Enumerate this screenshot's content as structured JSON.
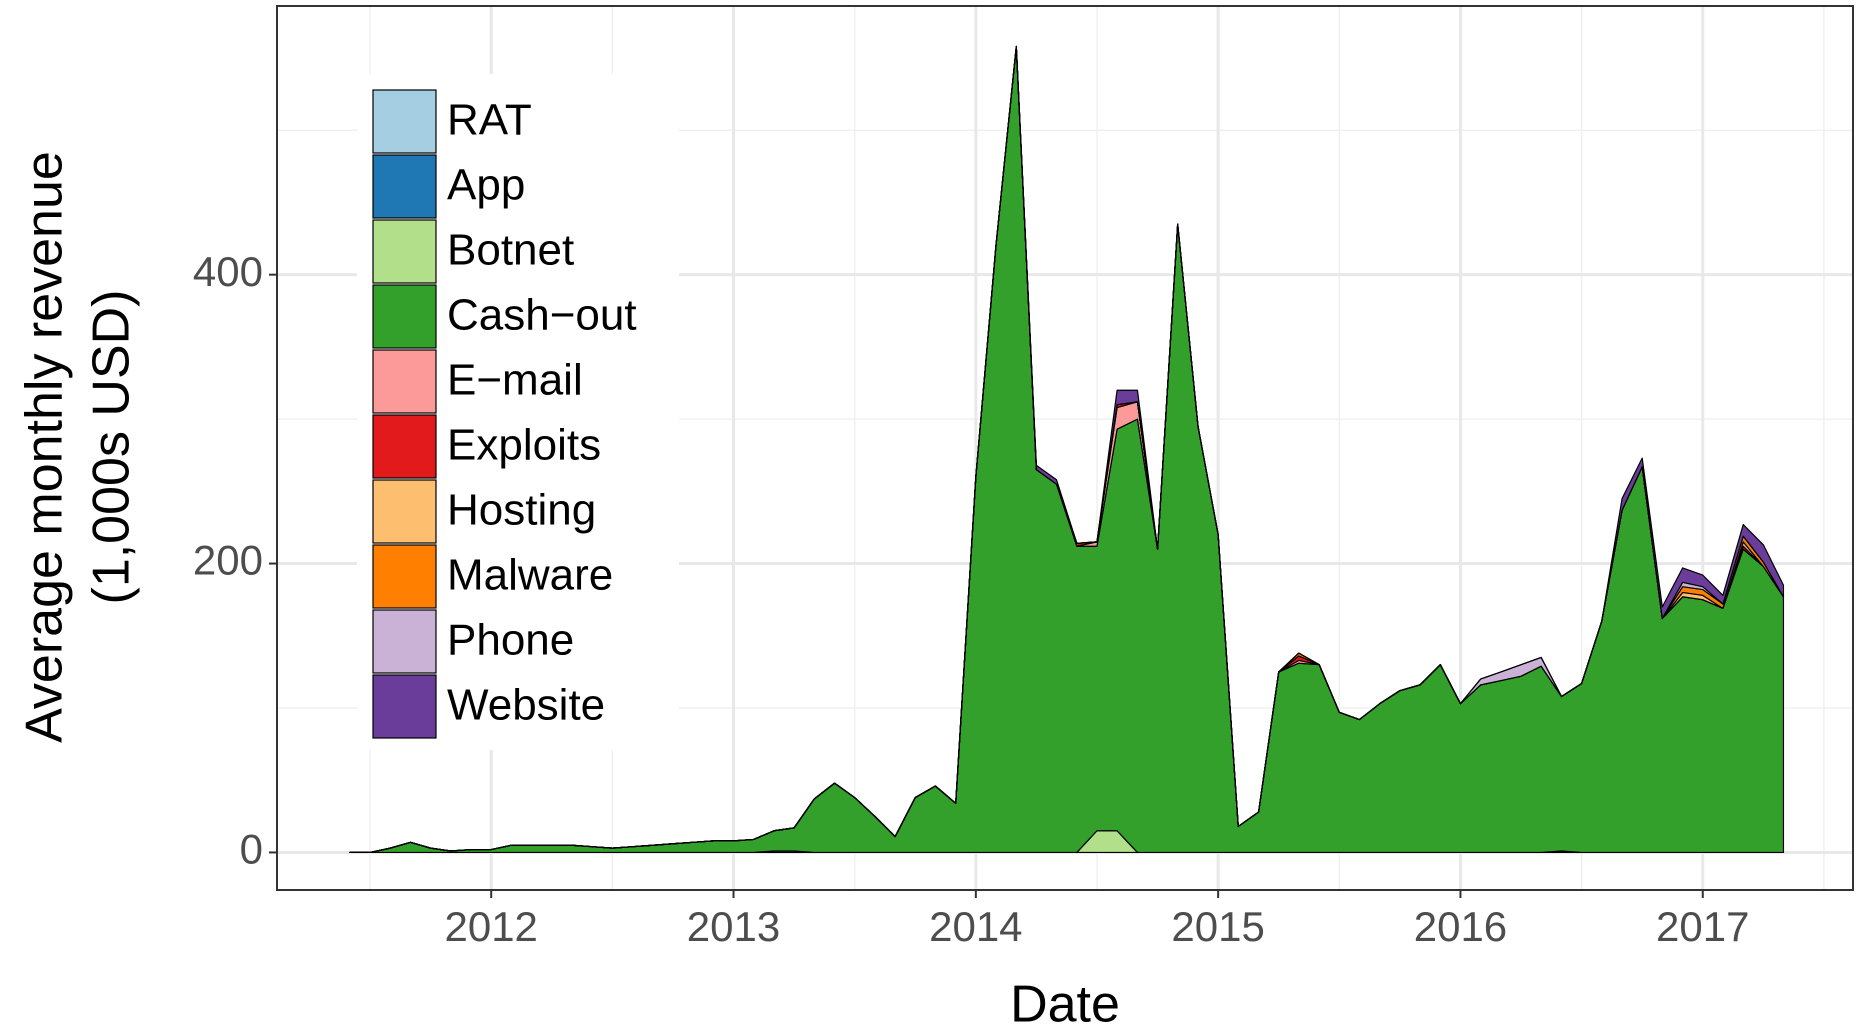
{
  "chart_data": {
    "type": "stacked_area",
    "x_label": "Date",
    "y_label": [
      "Average monthly revenue",
      "(1,000s USD)"
    ],
    "legend_position": "top-left",
    "grid": true,
    "xlim": [
      2011.116,
      2017.62
    ],
    "xticks": [
      2012,
      2013,
      2014,
      2015,
      2016,
      2017
    ],
    "ylim": [
      -26,
      586
    ],
    "yticks": [
      0,
      200,
      400
    ],
    "x": [
      2011.417,
      2011.5,
      2011.583,
      2011.667,
      2011.75,
      2011.833,
      2011.917,
      2012,
      2012.083,
      2012.167,
      2012.25,
      2012.333,
      2012.417,
      2012.5,
      2012.583,
      2012.667,
      2012.75,
      2012.833,
      2012.917,
      2013,
      2013.083,
      2013.167,
      2013.25,
      2013.333,
      2013.417,
      2013.5,
      2013.583,
      2013.667,
      2013.75,
      2013.833,
      2013.917,
      2014,
      2014.083,
      2014.167,
      2014.25,
      2014.333,
      2014.417,
      2014.5,
      2014.583,
      2014.667,
      2014.75,
      2014.833,
      2014.917,
      2015,
      2015.083,
      2015.167,
      2015.25,
      2015.333,
      2015.417,
      2015.5,
      2015.583,
      2015.667,
      2015.75,
      2015.833,
      2015.917,
      2016,
      2016.083,
      2016.167,
      2016.25,
      2016.333,
      2016.417,
      2016.5,
      2016.583,
      2016.667,
      2016.75,
      2016.833,
      2016.917,
      2017,
      2017.083,
      2017.167,
      2017.25,
      2017.333
    ],
    "series": [
      {
        "name": "RAT",
        "color": "#a6cee3",
        "values": [
          0,
          0,
          0,
          0,
          0,
          0,
          0,
          0,
          0,
          0,
          0,
          0,
          0,
          0,
          0,
          0,
          0,
          0,
          0,
          0,
          0,
          1,
          1,
          0,
          0,
          0,
          0,
          0,
          0,
          0,
          0,
          0,
          0,
          0,
          0,
          0,
          0,
          0,
          0,
          0,
          0,
          0,
          0,
          0,
          0,
          0,
          0,
          0,
          0,
          0,
          0,
          0,
          0,
          0,
          0,
          0,
          0,
          0,
          0,
          0,
          0,
          0,
          0,
          0,
          0,
          0,
          0,
          0,
          0,
          0,
          0,
          0
        ]
      },
      {
        "name": "App",
        "color": "#1f78b4",
        "values": [
          0,
          0,
          0,
          0,
          0,
          0,
          0,
          0,
          0,
          0,
          0,
          0,
          0,
          0,
          0,
          0,
          0,
          0,
          0,
          0,
          0,
          0,
          0,
          0,
          0,
          0,
          0,
          0,
          0,
          0,
          0,
          0,
          0,
          0,
          0,
          0,
          0,
          0,
          0,
          0,
          0,
          0,
          0,
          0,
          0,
          0,
          0,
          0,
          0,
          0,
          0,
          0,
          0,
          0,
          0,
          0,
          0,
          0,
          0,
          0,
          1,
          0,
          0,
          0,
          0,
          0,
          0,
          0,
          0,
          0,
          0,
          0
        ]
      },
      {
        "name": "Botnet",
        "color": "#b2df8a",
        "values": [
          0,
          0,
          0,
          0,
          0,
          0,
          0,
          0,
          0,
          0,
          0,
          0,
          0,
          0,
          0,
          0,
          0,
          0,
          0,
          0,
          0,
          0,
          0,
          0,
          0,
          0,
          0,
          0,
          0,
          0,
          0,
          0,
          0,
          0,
          0,
          0,
          0,
          15,
          15,
          0,
          0,
          0,
          0,
          0,
          0,
          0,
          0,
          0,
          0,
          0,
          0,
          0,
          0,
          0,
          0,
          0,
          0,
          0,
          0,
          0,
          0,
          0,
          0,
          0,
          0,
          0,
          0,
          0,
          0,
          0,
          0,
          0
        ]
      },
      {
        "name": "Cash−out",
        "color": "#33a02c",
        "values": [
          0,
          0,
          3,
          7,
          3,
          1,
          2,
          2,
          5,
          5,
          5,
          5,
          4,
          3,
          4,
          5,
          6,
          7,
          8,
          8,
          9,
          14,
          16,
          37,
          48,
          38,
          25,
          11,
          38,
          46,
          34,
          260,
          420,
          558,
          265,
          255,
          212,
          197,
          278,
          300,
          210,
          435,
          295,
          220,
          18,
          28,
          125,
          131,
          130,
          97,
          92,
          103,
          112,
          116,
          130,
          103,
          116,
          119,
          122,
          129,
          107,
          117,
          160,
          237,
          267,
          162,
          177,
          175,
          169,
          210,
          198,
          177
        ]
      },
      {
        "name": "E−mail",
        "color": "#fb9a99",
        "values": [
          0,
          0,
          0,
          0,
          0,
          0,
          0,
          0,
          0,
          0,
          0,
          0,
          0,
          0,
          0,
          0,
          0,
          0,
          0,
          0,
          0,
          0,
          0,
          0,
          0,
          0,
          0,
          0,
          0,
          0,
          0,
          0,
          0,
          0,
          0,
          0,
          0,
          3,
          15,
          12,
          0,
          0,
          0,
          0,
          0,
          0,
          0,
          2,
          0,
          0,
          0,
          0,
          0,
          0,
          0,
          0,
          0,
          0,
          0,
          0,
          0,
          0,
          0,
          0,
          0,
          0,
          0,
          0,
          0,
          0,
          0,
          0
        ]
      },
      {
        "name": "Exploits",
        "color": "#e31a1c",
        "values": [
          0,
          0,
          0,
          0,
          0,
          0,
          0,
          0,
          0,
          0,
          0,
          0,
          0,
          0,
          0,
          0,
          0,
          0,
          0,
          0,
          0,
          0,
          0,
          0,
          0,
          0,
          0,
          0,
          0,
          0,
          0,
          0,
          0,
          0,
          0,
          0,
          2,
          0,
          2,
          0,
          0,
          0,
          0,
          0,
          0,
          0,
          0,
          3,
          0,
          0,
          0,
          0,
          0,
          0,
          0,
          0,
          0,
          0,
          0,
          0,
          0,
          0,
          0,
          0,
          0,
          0,
          0,
          0,
          0,
          2,
          0,
          0
        ]
      },
      {
        "name": "Hosting",
        "color": "#fdbf6f",
        "values": [
          0,
          0,
          0,
          0,
          0,
          0,
          0,
          0,
          0,
          0,
          0,
          0,
          0,
          0,
          0,
          0,
          0,
          0,
          0,
          0,
          0,
          0,
          0,
          0,
          0,
          0,
          0,
          0,
          0,
          0,
          0,
          0,
          0,
          0,
          0,
          0,
          0,
          0,
          0,
          0,
          0,
          0,
          0,
          0,
          0,
          0,
          0,
          0,
          0,
          0,
          0,
          0,
          0,
          0,
          0,
          0,
          0,
          0,
          0,
          0,
          0,
          0,
          0,
          0,
          0,
          0,
          3,
          3,
          0,
          3,
          0,
          0
        ]
      },
      {
        "name": "Malware",
        "color": "#ff7f00",
        "values": [
          0,
          0,
          0,
          0,
          0,
          0,
          0,
          0,
          0,
          0,
          0,
          0,
          0,
          0,
          0,
          0,
          0,
          0,
          0,
          0,
          0,
          0,
          0,
          0,
          0,
          0,
          0,
          0,
          0,
          0,
          0,
          0,
          0,
          0,
          0,
          0,
          0,
          0,
          0,
          0,
          0,
          0,
          0,
          0,
          0,
          0,
          0,
          2,
          0,
          0,
          0,
          0,
          0,
          0,
          0,
          0,
          0,
          0,
          0,
          0,
          0,
          0,
          0,
          0,
          0,
          0,
          4,
          4,
          3,
          4,
          3,
          0
        ]
      },
      {
        "name": "Phone",
        "color": "#cab2d6",
        "values": [
          0,
          0,
          0,
          0,
          0,
          0,
          0,
          0,
          0,
          0,
          0,
          0,
          0,
          0,
          0,
          0,
          0,
          0,
          0,
          0,
          0,
          0,
          0,
          0,
          0,
          0,
          0,
          0,
          0,
          0,
          0,
          0,
          0,
          0,
          0,
          0,
          0,
          0,
          0,
          0,
          0,
          0,
          0,
          0,
          0,
          0,
          0,
          0,
          0,
          0,
          0,
          0,
          0,
          0,
          0,
          0,
          4,
          6,
          8,
          6,
          0,
          0,
          0,
          0,
          0,
          0,
          3,
          2,
          0,
          0,
          0,
          0
        ]
      },
      {
        "name": "Website",
        "color": "#6a3d9a",
        "values": [
          0,
          0,
          0,
          0,
          0,
          0,
          0,
          0,
          0,
          0,
          0,
          0,
          0,
          0,
          0,
          0,
          0,
          0,
          0,
          0,
          0,
          0,
          0,
          0,
          0,
          0,
          0,
          0,
          0,
          0,
          0,
          0,
          0,
          0,
          3,
          3,
          0,
          0,
          10,
          8,
          0,
          0,
          0,
          0,
          0,
          0,
          0,
          0,
          0,
          0,
          0,
          0,
          0,
          0,
          0,
          0,
          0,
          0,
          0,
          0,
          0,
          0,
          0,
          8,
          6,
          8,
          10,
          8,
          6,
          8,
          12,
          8
        ]
      }
    ]
  }
}
